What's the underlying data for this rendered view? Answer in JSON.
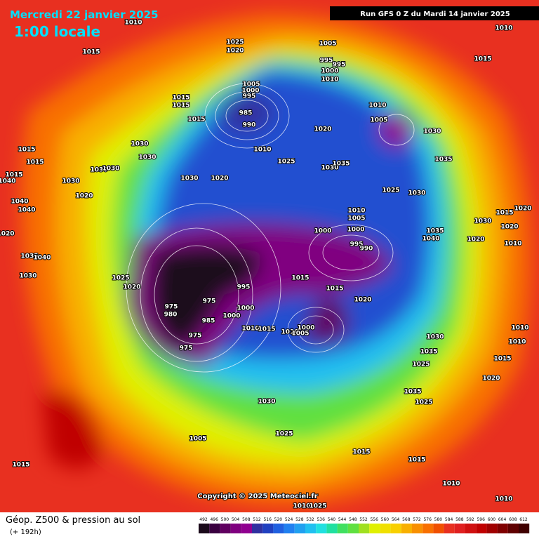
{
  "header": {
    "date": "Mercredi 22 janvier 2025",
    "time": "1:00 locale",
    "run": "Run GFS 0 Z du Mardi 14 janvier 2025"
  },
  "map": {
    "copyright": "Copyright © 2025 Meteociel.fr",
    "pressure_labels": [
      1010,
      1015,
      1025,
      1020,
      1005,
      995,
      995,
      1000,
      1010,
      1005,
      1000,
      995,
      985,
      990,
      1015,
      1015,
      1015,
      1010,
      1020,
      1025,
      1030,
      1035,
      1010,
      1005,
      1030,
      1035,
      1025,
      1030,
      1010,
      1005,
      1000,
      1000,
      995,
      990,
      1035,
      1040,
      1015,
      1020,
      1030,
      1020,
      1020,
      1010,
      1015,
      1015,
      1020,
      995,
      1000,
      975,
      975,
      980,
      985,
      1000,
      1010,
      1015,
      1010,
      1000,
      1005,
      975,
      975,
      1025,
      1020,
      1030,
      1030,
      1030,
      1030,
      1030,
      1020,
      1030,
      1020,
      1015,
      1015,
      1015,
      1040,
      1040,
      1040,
      1020,
      1035,
      1040,
      1030,
      1030,
      1035,
      1025,
      1015,
      1020,
      1010,
      1010,
      1035,
      1025,
      1030,
      1025,
      1015,
      1015,
      1005,
      1015,
      1010,
      1010,
      1010,
      1025,
      1010,
      1015
    ]
  },
  "legend": {
    "title": "Géop. Z500 & pression au sol",
    "subtitle": "(+ 192h)",
    "scale": [
      492,
      496,
      500,
      504,
      508,
      512,
      516,
      520,
      524,
      528,
      532,
      536,
      540,
      544,
      548,
      552,
      556,
      560,
      564,
      568,
      572,
      576,
      580,
      584,
      588,
      592,
      596,
      600,
      604,
      608,
      612
    ],
    "colors": [
      "#1a0a1a",
      "#3a0040",
      "#600060",
      "#800080",
      "#900090",
      "#3030a0",
      "#2040c0",
      "#2060e0",
      "#2080f0",
      "#20a0f0",
      "#20c0f0",
      "#20e0e0",
      "#20e0a0",
      "#40e060",
      "#60e040",
      "#a0e020",
      "#e0f000",
      "#f0e000",
      "#f8d000",
      "#f8b000",
      "#f89000",
      "#f87000",
      "#f05000",
      "#e83020",
      "#e02020",
      "#d01010",
      "#c00000",
      "#a00000",
      "#800000",
      "#600000",
      "#400000"
    ]
  }
}
